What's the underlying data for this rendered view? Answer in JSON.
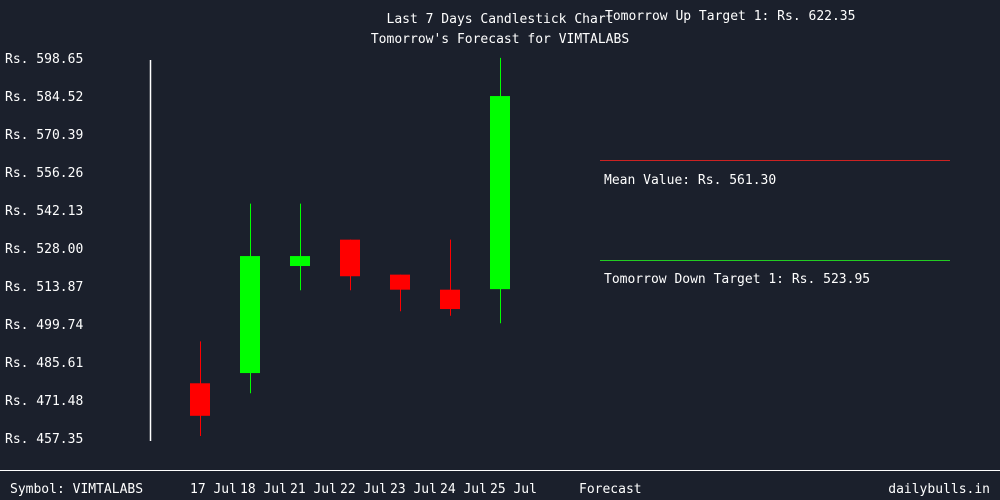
{
  "chart_data": {
    "type": "candlestick",
    "title": "Last 7 Days Candlestick Chart",
    "subtitle": "Tomorrow's Forecast for VIMTALABS",
    "y_ticks": [
      "Rs. 598.65",
      "Rs. 584.52",
      "Rs. 570.39",
      "Rs. 556.26",
      "Rs. 542.13",
      "Rs. 528.00",
      "Rs. 513.87",
      "Rs. 499.74",
      "Rs. 485.61",
      "Rs. 471.48",
      "Rs. 457.35"
    ],
    "ylim": [
      457.35,
      598.65
    ],
    "categories": [
      "17 Jul",
      "18 Jul",
      "21 Jul",
      "22 Jul",
      "23 Jul",
      "24 Jul",
      "25 Jul"
    ],
    "ohlc": [
      {
        "open": 477.7,
        "high": 493.3,
        "low": 458.1,
        "close": 465.6
      },
      {
        "open": 481.5,
        "high": 544.5,
        "low": 474.0,
        "close": 525.0
      },
      {
        "open": 521.3,
        "high": 544.5,
        "low": 512.3,
        "close": 525.0
      },
      {
        "open": 531.1,
        "high": 531.1,
        "low": 512.3,
        "close": 517.5
      },
      {
        "open": 518.1,
        "high": 518.1,
        "low": 504.5,
        "close": 512.5
      },
      {
        "open": 512.5,
        "high": 531.1,
        "low": 502.8,
        "close": 505.3
      },
      {
        "open": 512.7,
        "high": 598.7,
        "low": 500.0,
        "close": 584.5
      }
    ],
    "up_color": "#00ff00",
    "down_color": "#ff0000",
    "forecast": {
      "label": "Forecast",
      "up_target_label": "Tomorrow Up Target 1: Rs. 622.35",
      "mean_label": "Mean Value: Rs. 561.30",
      "down_target_label": "Tomorrow Down Target 1: Rs. 523.95",
      "mean_line_color": "#cc2222",
      "down_line_color": "#22cc22"
    },
    "grid": false
  },
  "footer": {
    "symbol": "Symbol: VIMTALABS",
    "brand": "dailybulls.in"
  }
}
